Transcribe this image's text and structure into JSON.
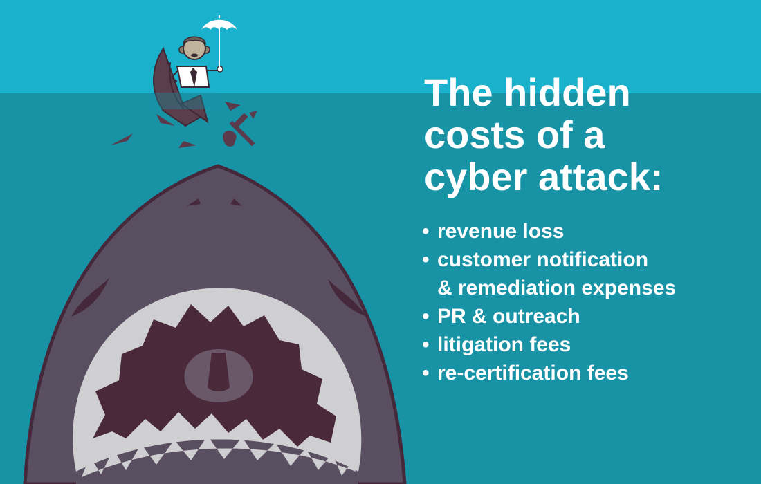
{
  "colors": {
    "sky": "#19b1cc",
    "sea": "#1893a6",
    "shark_body": "#5a4e61",
    "shark_outline": "#45283a",
    "mouth": "#4a2a3a",
    "gums": "#cfcfd1",
    "text": "#ffffff"
  },
  "headline": {
    "line1": "The hidden",
    "line2": "costs of a",
    "line3": "cyber attack:"
  },
  "costs": [
    {
      "lines": [
        "revenue loss"
      ]
    },
    {
      "lines": [
        "customer notification",
        "& remediation expenses"
      ]
    },
    {
      "lines": [
        "PR & outreach"
      ]
    },
    {
      "lines": [
        "litigation fees"
      ]
    },
    {
      "lines": [
        "re-certification fees"
      ]
    }
  ],
  "icons": [
    "umbrella-icon",
    "shark-illustration",
    "businessman-illustration",
    "boat-illustration",
    "propeller-icon"
  ]
}
